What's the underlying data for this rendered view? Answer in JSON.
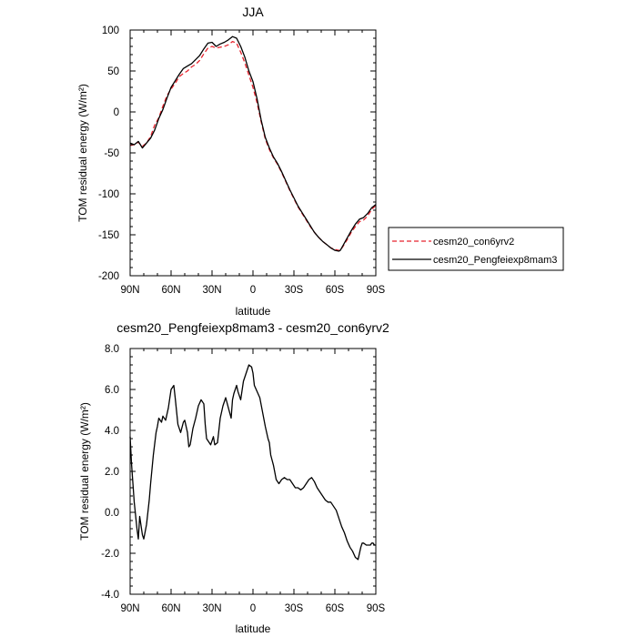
{
  "chart_data": [
    {
      "type": "line",
      "title": "JJA",
      "xlabel": "latitude",
      "ylabel": "TOM residual energy (W/m²)",
      "xlim": [
        90,
        -90
      ],
      "ylim": [
        -200,
        100
      ],
      "x_tick_values": [
        90,
        60,
        30,
        0,
        -30,
        -60,
        -90
      ],
      "x_tick_labels": [
        "90N",
        "60N",
        "30N",
        "0",
        "30S",
        "60S",
        "90S"
      ],
      "y_tick_values": [
        100,
        50,
        0,
        -50,
        -100,
        -150,
        -200
      ],
      "y_tick_labels": [
        "100",
        "50",
        "0",
        "-50",
        "-100",
        "-150",
        "-200"
      ],
      "legend": "right",
      "series": [
        {
          "name": "cesm20_con6yrv2",
          "color": "#e8232d",
          "dash": true,
          "x": [
            90,
            87,
            84,
            81,
            78,
            75,
            72,
            69,
            66,
            63,
            60,
            57,
            54,
            51,
            48,
            45,
            42,
            39,
            36,
            33,
            30,
            27,
            24,
            21,
            18,
            15,
            12,
            9,
            6,
            3,
            0,
            -3,
            -6,
            -9,
            -12,
            -15,
            -18,
            -21,
            -24,
            -27,
            -30,
            -33,
            -36,
            -39,
            -42,
            -45,
            -48,
            -51,
            -54,
            -57,
            -60,
            -63,
            -64,
            -66,
            -69,
            -72,
            -75,
            -78,
            -81,
            -84,
            -87,
            -90
          ],
          "y": [
            -41,
            -40,
            -37,
            -42,
            -38,
            -30,
            -16,
            -7,
            7,
            20,
            28,
            35,
            43,
            47,
            50,
            55,
            58,
            63,
            71,
            78,
            80,
            78,
            79,
            80,
            82,
            86,
            84,
            73,
            60,
            45,
            30,
            11,
            -12,
            -33,
            -46,
            -56,
            -64,
            -74,
            -85,
            -96,
            -106,
            -116,
            -124,
            -132,
            -140,
            -147,
            -153,
            -158,
            -162,
            -166,
            -168,
            -169,
            -169,
            -164,
            -156,
            -147,
            -140,
            -134,
            -132,
            -127,
            -119,
            -114
          ]
        },
        {
          "name": "cesm20_Pengfeiexp8mam3",
          "color": "#000000",
          "dash": false,
          "x": [
            90,
            87,
            84,
            81,
            78,
            75,
            72,
            69,
            66,
            63,
            60,
            57,
            54,
            51,
            48,
            45,
            42,
            39,
            36,
            33,
            30,
            27,
            24,
            21,
            18,
            15,
            12,
            9,
            6,
            3,
            0,
            -3,
            -6,
            -9,
            -12,
            -15,
            -18,
            -21,
            -24,
            -27,
            -30,
            -33,
            -36,
            -39,
            -42,
            -45,
            -48,
            -51,
            -54,
            -57,
            -60,
            -63,
            -64,
            -66,
            -69,
            -72,
            -75,
            -78,
            -81,
            -84,
            -87,
            -90
          ],
          "y": [
            -38,
            -40,
            -36,
            -44,
            -38,
            -32,
            -22,
            -8,
            3,
            17,
            30,
            38,
            46,
            53,
            56,
            59,
            64,
            69,
            77,
            84,
            85,
            80,
            83,
            85,
            88,
            92,
            90,
            80,
            67,
            50,
            37,
            16,
            -10,
            -31,
            -44,
            -55,
            -63,
            -73,
            -84,
            -95,
            -105,
            -115,
            -123,
            -131,
            -139,
            -147,
            -153,
            -158,
            -162,
            -166,
            -169,
            -170,
            -169,
            -163,
            -154,
            -145,
            -137,
            -131,
            -129,
            -124,
            -117,
            -113
          ]
        }
      ]
    },
    {
      "type": "line",
      "title": "cesm20_Pengfeiexp8mam3 - cesm20_con6yrv2",
      "xlabel": "latitude",
      "ylabel": "TOM residual energy (W/m²)",
      "xlim": [
        90,
        -90
      ],
      "ylim": [
        -4,
        8
      ],
      "x_tick_values": [
        90,
        60,
        30,
        0,
        -30,
        -60,
        -90
      ],
      "x_tick_labels": [
        "90N",
        "60N",
        "30N",
        "0",
        "30S",
        "60S",
        "90S"
      ],
      "y_tick_values": [
        8,
        6,
        4,
        2,
        0,
        -2,
        -4
      ],
      "y_tick_labels": [
        "8.0",
        "6.0",
        "4.0",
        "2.0",
        "0.0",
        "-2.0",
        "-4.0"
      ],
      "series": [
        {
          "color": "#000000",
          "x": [
            90,
            89,
            87,
            85,
            84,
            83,
            81,
            80,
            78,
            76,
            75,
            73,
            71,
            70,
            69,
            67,
            66,
            64,
            62,
            60,
            58,
            57,
            55,
            53,
            51,
            50,
            48,
            47,
            46,
            44,
            42,
            40,
            38,
            36,
            35,
            34,
            32,
            31,
            29,
            28,
            26,
            24,
            22,
            20,
            18,
            16,
            15,
            14,
            12,
            11,
            9,
            7,
            5,
            3,
            1,
            0,
            -1,
            -3,
            -5,
            -7,
            -9,
            -11,
            -12,
            -13,
            -15,
            -17,
            -19,
            -21,
            -23,
            -25,
            -27,
            -29,
            -31,
            -33,
            -35,
            -37,
            -39,
            -41,
            -43,
            -45,
            -47,
            -49,
            -51,
            -53,
            -55,
            -57,
            -59,
            -61,
            -63,
            -65,
            -67,
            -69,
            -71,
            -73,
            -75,
            -77,
            -79,
            -80,
            -81,
            -83,
            -85,
            -86,
            -87,
            -88,
            -89,
            -90
          ],
          "y": [
            3.7,
            2.4,
            0.5,
            -0.8,
            -1.3,
            -0.2,
            -1.1,
            -1.3,
            -0.6,
            0.6,
            1.4,
            2.8,
            3.9,
            4.2,
            4.6,
            4.4,
            4.7,
            4.5,
            5.1,
            6.0,
            6.2,
            5.6,
            4.3,
            3.9,
            4.4,
            4.5,
            3.9,
            3.2,
            3.3,
            4.1,
            4.6,
            5.2,
            5.5,
            5.3,
            4.3,
            3.6,
            3.4,
            3.3,
            3.7,
            3.3,
            3.4,
            4.6,
            5.2,
            5.6,
            5.1,
            4.6,
            5.5,
            5.8,
            6.2,
            5.9,
            5.5,
            6.4,
            6.8,
            7.2,
            7.1,
            6.8,
            6.2,
            5.9,
            5.6,
            4.9,
            4.2,
            3.6,
            3.4,
            2.8,
            2.3,
            1.6,
            1.4,
            1.6,
            1.7,
            1.6,
            1.6,
            1.4,
            1.2,
            1.2,
            1.1,
            1.2,
            1.4,
            1.6,
            1.7,
            1.5,
            1.2,
            1.0,
            0.8,
            0.6,
            0.5,
            0.5,
            0.3,
            0.1,
            -0.3,
            -0.7,
            -1.0,
            -1.4,
            -1.7,
            -1.9,
            -2.2,
            -2.3,
            -1.7,
            -1.5,
            -1.5,
            -1.6,
            -1.6,
            -1.6,
            -1.5,
            -1.5,
            -1.6,
            -1.6
          ]
        }
      ]
    }
  ]
}
